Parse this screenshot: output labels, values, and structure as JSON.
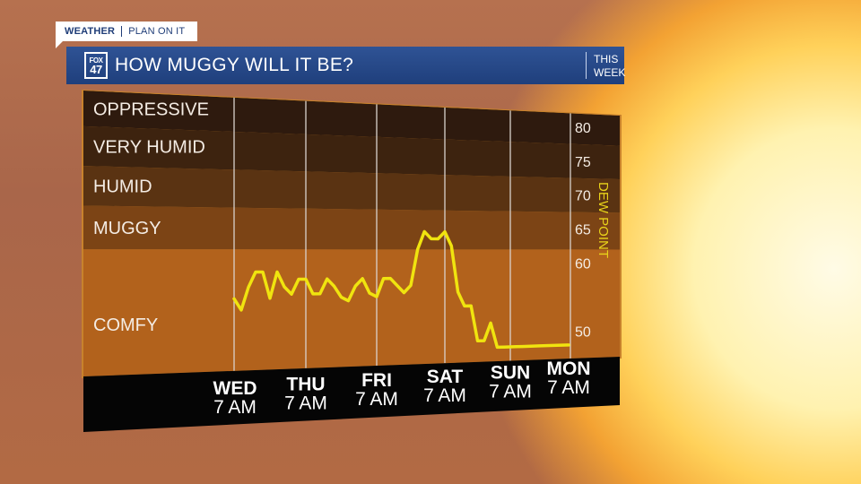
{
  "header": {
    "brand": "WEATHER",
    "segment": "PLAN ON IT",
    "logo_top": "FOX",
    "logo_bottom": "47",
    "title": "HOW MUGGY WILL IT BE?",
    "side_line1": "THIS",
    "side_line2": "WEEK"
  },
  "colors": {
    "title_bar": "#24468a",
    "line": "#f0e40f",
    "axis_label": "#e8d21a"
  },
  "chart_data": {
    "type": "line",
    "ylabel": "DEW POINT",
    "yticks": [
      50,
      60,
      65,
      70,
      75,
      80
    ],
    "ylim": [
      46,
      82
    ],
    "bands": [
      {
        "label": "OPPRESSIVE",
        "from": 77.5,
        "to": 82,
        "color": "#2e1a0e"
      },
      {
        "label": "VERY HUMID",
        "from": 72.5,
        "to": 77.5,
        "color": "#3d230f"
      },
      {
        "label": "HUMID",
        "from": 67.5,
        "to": 72.5,
        "color": "#5a3312"
      },
      {
        "label": "MUGGY",
        "from": 62,
        "to": 67.5,
        "color": "#7c4415"
      },
      {
        "label": "COMFY",
        "from": 46,
        "to": 62,
        "color": "#b2621c"
      }
    ],
    "categories": [
      {
        "day": "WED",
        "time": "7 AM"
      },
      {
        "day": "THU",
        "time": "7 AM"
      },
      {
        "day": "FRI",
        "time": "7 AM"
      },
      {
        "day": "SAT",
        "time": "7 AM"
      },
      {
        "day": "SUN",
        "time": "7 AM"
      },
      {
        "day": "MON",
        "time": "7 AM"
      }
    ],
    "series": [
      {
        "x": [
          0,
          0.1,
          0.2,
          0.3,
          0.4,
          0.5,
          0.6,
          0.7,
          0.8,
          0.9,
          1.0,
          1.1,
          1.2,
          1.3,
          1.4,
          1.5,
          1.6,
          1.7,
          1.8,
          1.9,
          2.0,
          2.1,
          2.2,
          2.3,
          2.4,
          2.5,
          2.6,
          2.7,
          2.8,
          2.9,
          3.0,
          3.1,
          3.2,
          3.3,
          3.4,
          3.5,
          3.6,
          3.7,
          3.8,
          3.9,
          4.0,
          4.1,
          4.2,
          4.3,
          4.5,
          4.8,
          5.0
        ],
        "values": [
          55.5,
          54,
          57,
          59,
          59,
          55.5,
          59,
          57,
          56,
          58,
          58,
          56,
          56,
          58,
          57,
          55.5,
          55,
          57,
          58,
          56,
          55.5,
          58,
          58,
          57,
          56,
          57,
          62,
          64.5,
          63.5,
          63.5,
          64.5,
          62.5,
          56,
          54,
          54,
          49,
          49,
          51.5,
          48,
          48,
          48,
          48,
          48,
          48,
          48,
          48,
          48
        ]
      }
    ]
  }
}
